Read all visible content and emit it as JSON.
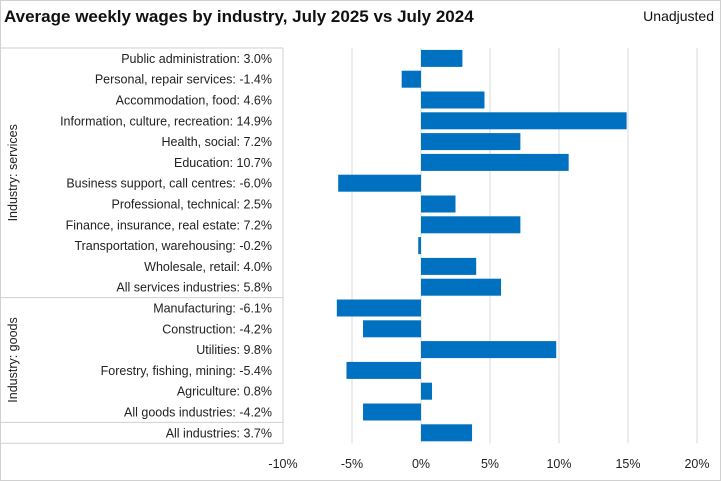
{
  "chart_data": {
    "type": "bar",
    "orientation": "horizontal",
    "title": "Average weekly wages by industry, July 2025 vs July 2024",
    "note": "Unadjusted",
    "xlim": [
      -10,
      20
    ],
    "xticks": [
      -10,
      -5,
      0,
      5,
      10,
      15,
      20
    ],
    "xtick_labels": [
      "-10%",
      "-5%",
      "0%",
      "5%",
      "10%",
      "15%",
      "20%"
    ],
    "bar_color": "#0070C0",
    "grid": true,
    "groups": [
      {
        "label": "Industry: services",
        "categories": [
          {
            "label": "Public administration:  3.0%",
            "value": 3.0
          },
          {
            "label": "Personal, repair services:  -1.4%",
            "value": -1.4
          },
          {
            "label": "Accommodation, food:  4.6%",
            "value": 4.6
          },
          {
            "label": "Information, culture, recreation:  14.9%",
            "value": 14.9
          },
          {
            "label": "Health, social:  7.2%",
            "value": 7.2
          },
          {
            "label": "Education:  10.7%",
            "value": 10.7
          },
          {
            "label": "Business support, call centres:  -6.0%",
            "value": -6.0
          },
          {
            "label": "Professional, technical:  2.5%",
            "value": 2.5
          },
          {
            "label": "Finance, insurance, real estate:  7.2%",
            "value": 7.2
          },
          {
            "label": "Transportation, warehousing:  -0.2%",
            "value": -0.2
          },
          {
            "label": "Wholesale, retail:  4.0%",
            "value": 4.0
          },
          {
            "label": "All services industries:  5.8%",
            "value": 5.8
          }
        ]
      },
      {
        "label": "Industry: goods",
        "categories": [
          {
            "label": "Manufacturing:  -6.1%",
            "value": -6.1
          },
          {
            "label": "Construction:  -4.2%",
            "value": -4.2
          },
          {
            "label": "Utilities:  9.8%",
            "value": 9.8
          },
          {
            "label": "Forestry, fishing, mining:  -5.4%",
            "value": -5.4
          },
          {
            "label": "Agriculture:  0.8%",
            "value": 0.8
          },
          {
            "label": "All goods industries:  -4.2%",
            "value": -4.2
          }
        ]
      },
      {
        "label": "",
        "categories": [
          {
            "label": "All industries:  3.7%",
            "value": 3.7
          }
        ]
      }
    ]
  }
}
